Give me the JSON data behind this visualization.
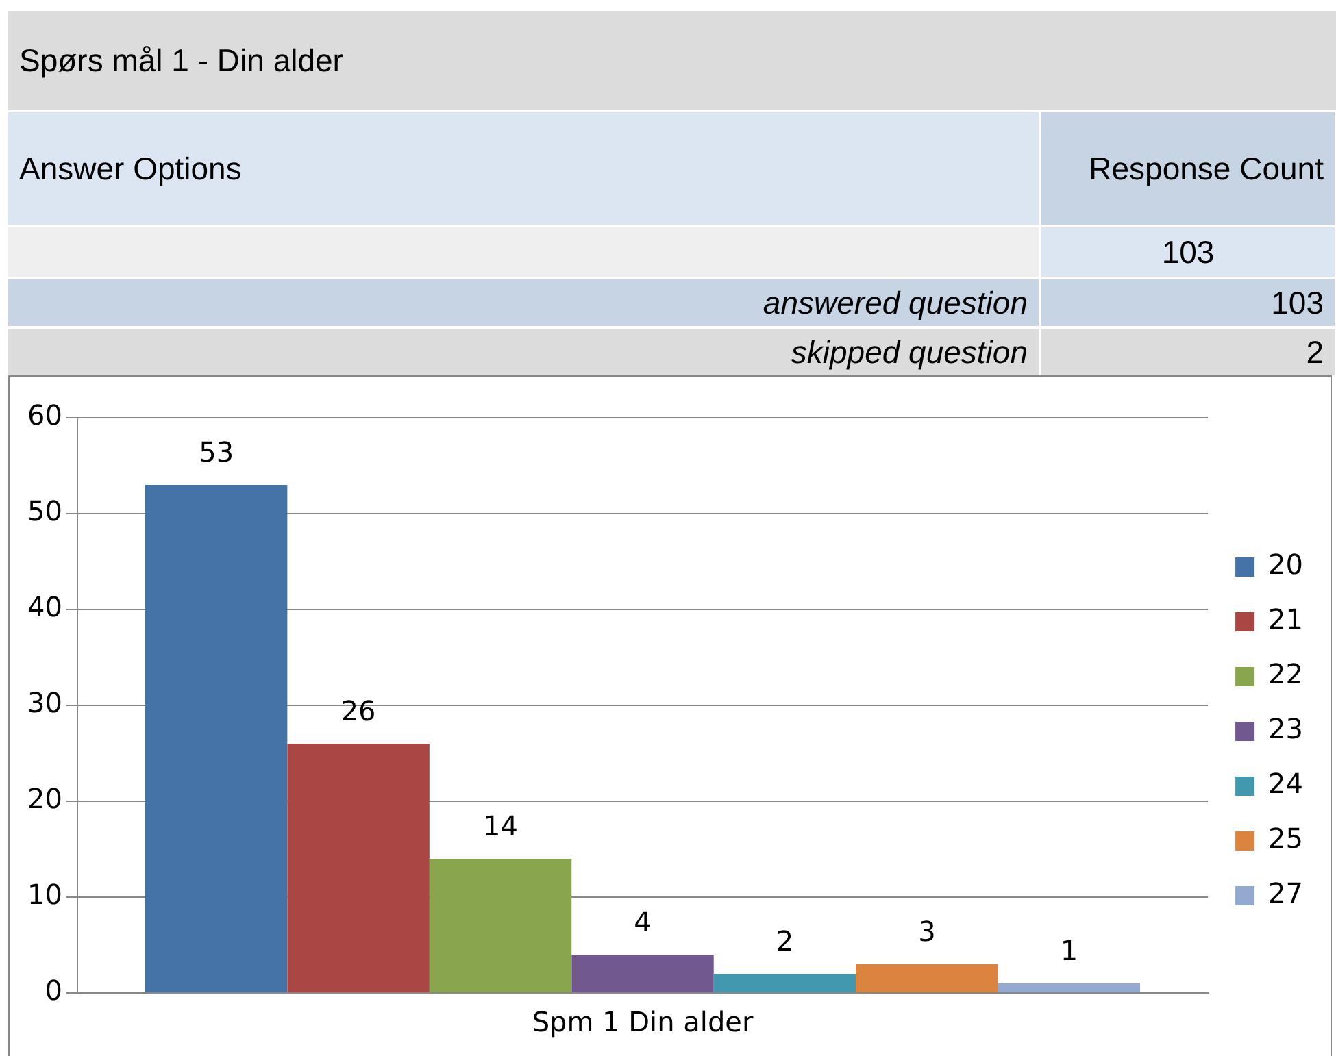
{
  "chart_data": {
    "type": "bar",
    "title": "Spørs mål 1 - Din alder",
    "annotations": [
      "Answer Options",
      "Response Count",
      "103",
      "answered question",
      "103",
      "skipped question",
      "2"
    ],
    "categories": [
      "Spm 1 Din alder"
    ],
    "series": [
      {
        "name": "20",
        "color": "#4572a7",
        "values": [
          53
        ]
      },
      {
        "name": "21",
        "color": "#aa4643",
        "values": [
          26
        ]
      },
      {
        "name": "22",
        "color": "#89a54e",
        "values": [
          14
        ]
      },
      {
        "name": "23",
        "color": "#71588f",
        "values": [
          4
        ]
      },
      {
        "name": "24",
        "color": "#4198af",
        "values": [
          2
        ]
      },
      {
        "name": "25",
        "color": "#db843d",
        "values": [
          3
        ]
      },
      {
        "name": "27",
        "color": "#93a9cf",
        "values": [
          1
        ]
      }
    ],
    "ylim": [
      0,
      60
    ],
    "yticks": [
      0,
      10,
      20,
      30,
      40,
      50,
      60
    ],
    "grid": "y",
    "legend": "right",
    "data_labels": true
  }
}
